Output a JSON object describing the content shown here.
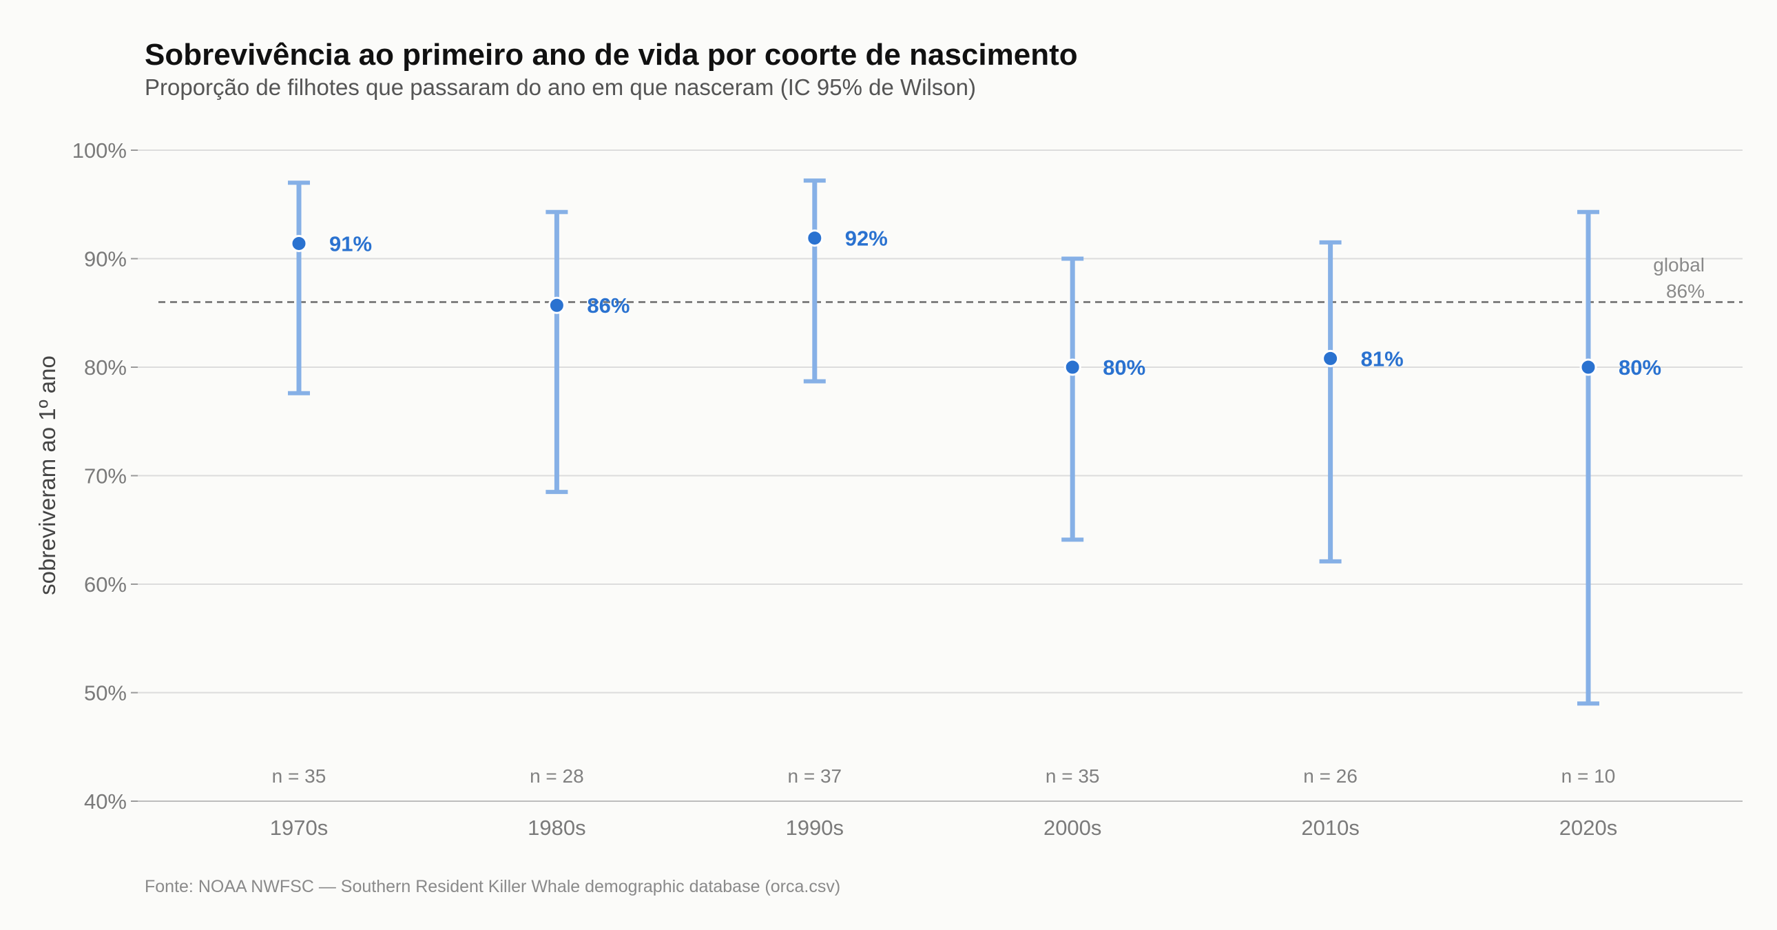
{
  "chart_data": {
    "type": "errorbar",
    "title": "Sobrevivência ao primeiro ano de vida por coorte de nascimento",
    "subtitle": "Proporção de filhotes que passaram do ano em que nasceram (IC 95% de Wilson)",
    "ylabel": "sobreviveram ao 1º ano",
    "ylim": [
      40,
      100
    ],
    "yticks": [
      40,
      50,
      60,
      70,
      80,
      90,
      100
    ],
    "ytick_labels": [
      "40%",
      "50%",
      "60%",
      "70%",
      "80%",
      "90%",
      "100%"
    ],
    "grid": true,
    "categories": [
      "1970s",
      "1980s",
      "1990s",
      "2000s",
      "2010s",
      "2020s"
    ],
    "values": [
      91.4,
      85.7,
      91.9,
      80.0,
      80.8,
      80.0
    ],
    "value_labels": [
      "91%",
      "86%",
      "92%",
      "80%",
      "81%",
      "80%"
    ],
    "ci_lower": [
      77.6,
      68.5,
      78.7,
      64.1,
      62.1,
      49.0
    ],
    "ci_upper": [
      97.0,
      94.3,
      97.2,
      90.0,
      91.5,
      94.3
    ],
    "n_labels": [
      "n = 35",
      "n = 28",
      "n = 37",
      "n = 35",
      "n = 26",
      "n = 10"
    ],
    "reference_line": {
      "value": 86,
      "label_line1": "global",
      "label_line2": "86%"
    },
    "colors": {
      "point": "#2a72d0",
      "bar": "#86b0e6",
      "reference": "#808080",
      "grid": "#dcdcdc"
    },
    "source": "Fonte: NOAA NWFSC — Southern Resident Killer Whale demographic database (orca.csv)"
  }
}
